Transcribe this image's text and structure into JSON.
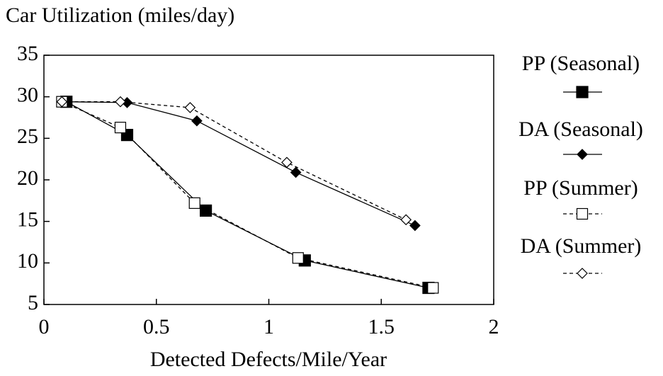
{
  "chart_data": {
    "type": "line",
    "title": "Car Utilization (miles/day)",
    "x_label": "Detected Defects/Mile/Year",
    "xlim": [
      0,
      2
    ],
    "xticks": [
      0,
      0.5,
      1,
      1.5,
      2
    ],
    "ylim": [
      5,
      35
    ],
    "yticks": [
      5,
      10,
      15,
      20,
      25,
      30,
      35
    ],
    "series": [
      {
        "name": "PP (Seasonal)",
        "color": "#000000",
        "marker": "square",
        "filled": true,
        "dashed": false,
        "x": [
          0.1,
          0.37,
          0.72,
          1.16,
          1.71
        ],
        "values": [
          29.4,
          25.4,
          16.3,
          10.3,
          7.0
        ]
      },
      {
        "name": "DA (Seasonal)",
        "color": "#000000",
        "marker": "diamond",
        "filled": true,
        "dashed": false,
        "x": [
          0.1,
          0.37,
          0.68,
          1.12,
          1.65
        ],
        "values": [
          29.4,
          29.3,
          27.1,
          20.9,
          14.5
        ]
      },
      {
        "name": "PP (Summer)",
        "color": "#000000",
        "marker": "square",
        "filled": false,
        "dashed": true,
        "x": [
          0.08,
          0.34,
          0.67,
          1.13,
          1.73
        ],
        "values": [
          29.4,
          26.3,
          17.2,
          10.6,
          7.0
        ]
      },
      {
        "name": "DA (Summer)",
        "color": "#000000",
        "marker": "diamond",
        "filled": false,
        "dashed": true,
        "x": [
          0.08,
          0.34,
          0.65,
          1.08,
          1.61
        ],
        "values": [
          29.4,
          29.4,
          28.7,
          22.1,
          15.2
        ]
      }
    ]
  }
}
